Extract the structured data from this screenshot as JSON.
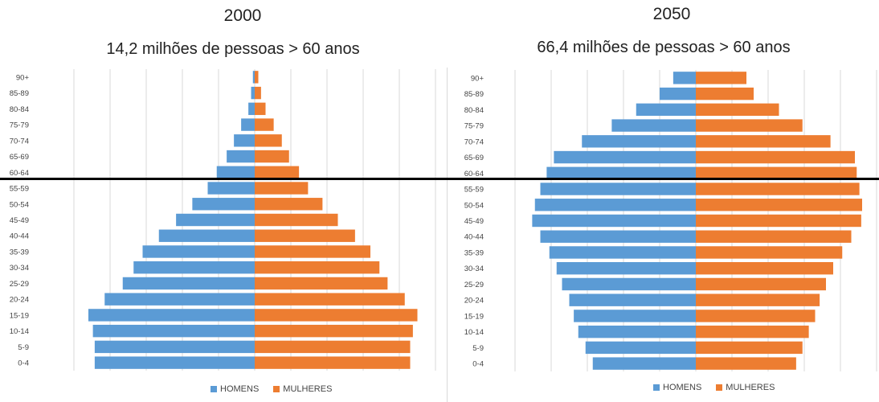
{
  "colors": {
    "homens": "#5b9bd5",
    "mulheres": "#ed7d31",
    "grid": "#d9d9d9",
    "text": "#444444"
  },
  "legend": {
    "homens": "HOMENS",
    "mulheres": "MULHERES"
  },
  "chart_data": [
    {
      "type": "bar",
      "orientation": "horizontal",
      "title": "2000",
      "subtitle": "14,2 milhões de pessoas > 60 anos",
      "categories": [
        "90+",
        "85-89",
        "80-84",
        "75-79",
        "70-74",
        "65-69",
        "60-64",
        "55-59",
        "50-54",
        "45-49",
        "40-44",
        "35-39",
        "30-34",
        "25-29",
        "20-24",
        "15-19",
        "10-14",
        "5-9",
        "0-4"
      ],
      "series": [
        {
          "name": "HOMENS",
          "values": [
            0.1,
            0.2,
            0.35,
            0.75,
            1.15,
            1.55,
            2.1,
            2.6,
            3.45,
            4.35,
            5.3,
            6.2,
            6.7,
            7.3,
            8.3,
            9.2,
            8.95,
            8.85,
            8.85
          ]
        },
        {
          "name": "MULHERES",
          "values": [
            0.2,
            0.35,
            0.6,
            1.05,
            1.5,
            1.9,
            2.45,
            2.95,
            3.75,
            4.6,
            5.55,
            6.4,
            6.9,
            7.35,
            8.3,
            9.0,
            8.75,
            8.6,
            8.6
          ]
        }
      ],
      "xlim": [
        -10,
        10
      ],
      "grid": true,
      "legend_position": "bottom"
    },
    {
      "type": "bar",
      "orientation": "horizontal",
      "title": "2050",
      "subtitle": "66,4 milhões de pessoas > 60 anos",
      "categories": [
        "90+",
        "85-89",
        "80-84",
        "75-79",
        "70-74",
        "65-69",
        "60-64",
        "55-59",
        "50-54",
        "45-49",
        "40-44",
        "35-39",
        "30-34",
        "25-29",
        "20-24",
        "15-19",
        "10-14",
        "5-9",
        "0-4"
      ],
      "series": [
        {
          "name": "HOMENS",
          "values": [
            1.25,
            2.0,
            3.3,
            4.65,
            6.3,
            7.85,
            8.25,
            8.6,
            8.9,
            9.05,
            8.6,
            8.1,
            7.7,
            7.4,
            7.0,
            6.75,
            6.5,
            6.1,
            5.7
          ]
        },
        {
          "name": "MULHERES",
          "values": [
            2.8,
            3.2,
            4.6,
            5.9,
            7.45,
            8.8,
            8.9,
            9.05,
            9.2,
            9.15,
            8.6,
            8.1,
            7.6,
            7.2,
            6.85,
            6.6,
            6.25,
            5.9,
            5.55
          ]
        }
      ],
      "xlim": [
        -10,
        10
      ],
      "grid": true,
      "legend_position": "bottom"
    }
  ]
}
